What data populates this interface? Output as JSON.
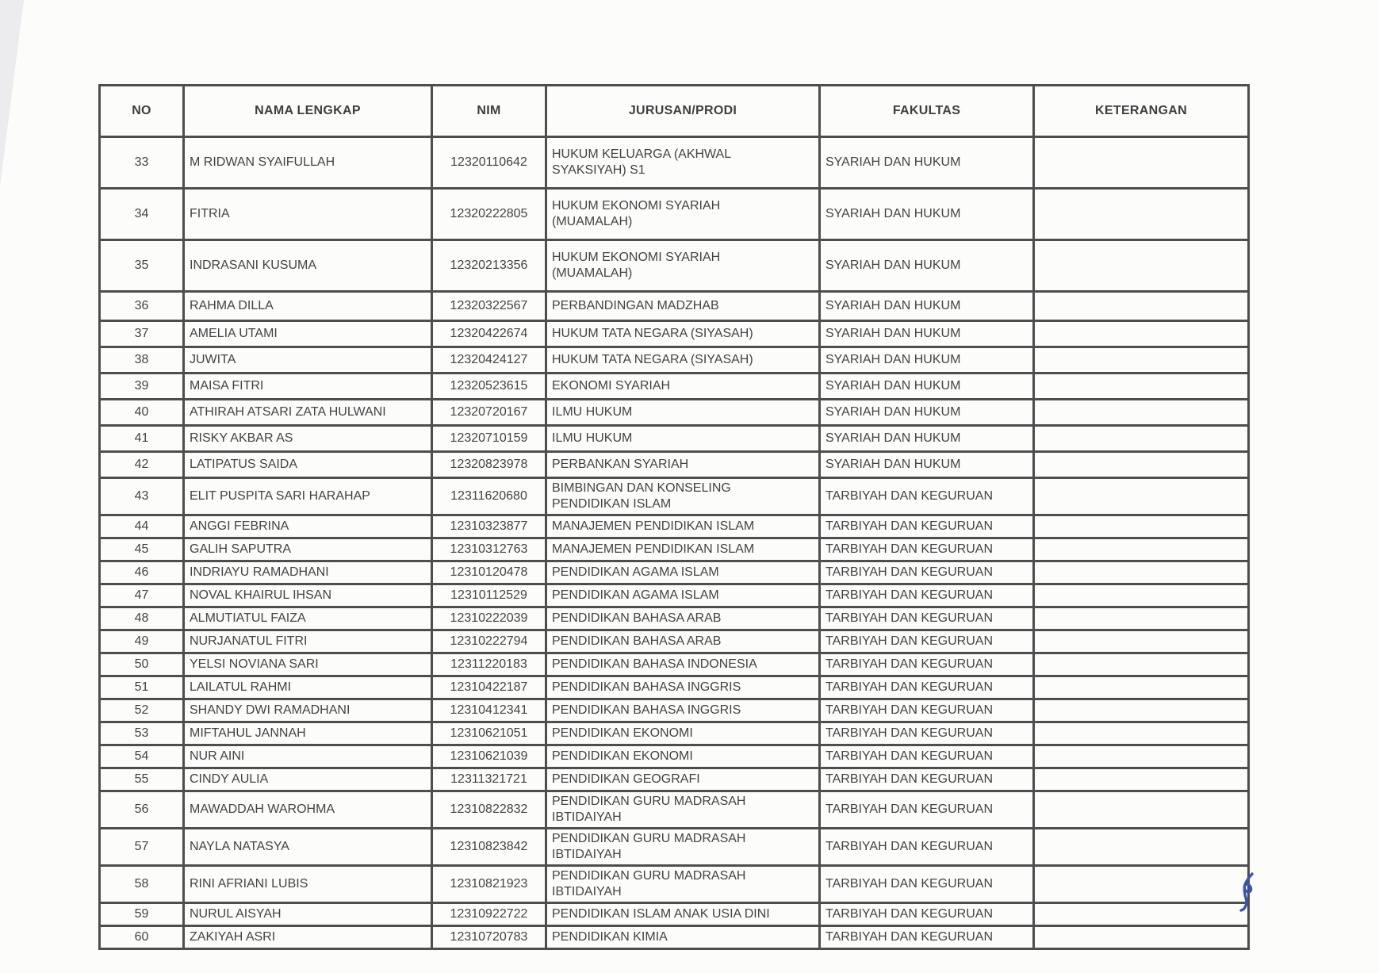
{
  "page": {
    "background": "#fcfcfb",
    "border_color": "#4e4e4e",
    "text_color": "#434343",
    "pen_mark_color": "#3b55ae"
  },
  "table": {
    "headers": {
      "no": "NO",
      "nama": "NAMA LENGKAP",
      "nim": "NIM",
      "jurusan": "JURUSAN/PRODI",
      "fakultas": "FAKULTAS",
      "keterangan": "KETERANGAN"
    },
    "rows": [
      {
        "no": "33",
        "nama": "M RIDWAN SYAIFULLAH",
        "nim": "12320110642",
        "jurusan": "HUKUM KELUARGA (AKHWAL\nSYAKSIYAH) S1",
        "fakultas": "SYARIAH DAN HUKUM",
        "keterangan": ""
      },
      {
        "no": "34",
        "nama": "FITRIA",
        "nim": "12320222805",
        "jurusan": "HUKUM EKONOMI SYARIAH\n(MUAMALAH)",
        "fakultas": "SYARIAH DAN HUKUM",
        "keterangan": ""
      },
      {
        "no": "35",
        "nama": "INDRASANI KUSUMA",
        "nim": "12320213356",
        "jurusan": "HUKUM EKONOMI SYARIAH\n(MUAMALAH)",
        "fakultas": "SYARIAH DAN HUKUM",
        "keterangan": ""
      },
      {
        "no": "36",
        "nama": "RAHMA DILLA",
        "nim": "12320322567",
        "jurusan": "PERBANDINGAN MADZHAB",
        "fakultas": "SYARIAH DAN HUKUM",
        "keterangan": ""
      },
      {
        "no": "37",
        "nama": "AMELIA UTAMI",
        "nim": "12320422674",
        "jurusan": "HUKUM TATA NEGARA (SIYASAH)",
        "fakultas": "SYARIAH DAN HUKUM",
        "keterangan": ""
      },
      {
        "no": "38",
        "nama": "JUWITA",
        "nim": "12320424127",
        "jurusan": "HUKUM TATA NEGARA (SIYASAH)",
        "fakultas": "SYARIAH DAN HUKUM",
        "keterangan": ""
      },
      {
        "no": "39",
        "nama": "MAISA FITRI",
        "nim": "12320523615",
        "jurusan": "EKONOMI SYARIAH",
        "fakultas": "SYARIAH DAN HUKUM",
        "keterangan": ""
      },
      {
        "no": "40",
        "nama": "ATHIRAH ATSARI ZATA HULWANI",
        "nim": "12320720167",
        "jurusan": "ILMU HUKUM",
        "fakultas": "SYARIAH DAN HUKUM",
        "keterangan": ""
      },
      {
        "no": "41",
        "nama": "RISKY AKBAR AS",
        "nim": "12320710159",
        "jurusan": "ILMU HUKUM",
        "fakultas": "SYARIAH DAN HUKUM",
        "keterangan": ""
      },
      {
        "no": "42",
        "nama": "LATIPATUS SAIDA",
        "nim": "12320823978",
        "jurusan": "PERBANKAN SYARIAH",
        "fakultas": "SYARIAH DAN HUKUM",
        "keterangan": ""
      },
      {
        "no": "43",
        "nama": "ELIT PUSPITA SARI HARAHAP",
        "nim": "12311620680",
        "jurusan": "BIMBINGAN DAN KONSELING\nPENDIDIKAN ISLAM",
        "fakultas": "TARBIYAH DAN KEGURUAN",
        "keterangan": ""
      },
      {
        "no": "44",
        "nama": "ANGGI FEBRINA",
        "nim": "12310323877",
        "jurusan": "MANAJEMEN PENDIDIKAN ISLAM",
        "fakultas": "TARBIYAH DAN KEGURUAN",
        "keterangan": ""
      },
      {
        "no": "45",
        "nama": "GALIH SAPUTRA",
        "nim": "12310312763",
        "jurusan": "MANAJEMEN PENDIDIKAN ISLAM",
        "fakultas": "TARBIYAH DAN KEGURUAN",
        "keterangan": ""
      },
      {
        "no": "46",
        "nama": "INDRIAYU RAMADHANI",
        "nim": "12310120478",
        "jurusan": "PENDIDIKAN AGAMA ISLAM",
        "fakultas": "TARBIYAH DAN KEGURUAN",
        "keterangan": ""
      },
      {
        "no": "47",
        "nama": "NOVAL KHAIRUL IHSAN",
        "nim": "12310112529",
        "jurusan": "PENDIDIKAN AGAMA ISLAM",
        "fakultas": "TARBIYAH DAN KEGURUAN",
        "keterangan": ""
      },
      {
        "no": "48",
        "nama": "ALMUTIATUL FAIZA",
        "nim": "12310222039",
        "jurusan": "PENDIDIKAN BAHASA ARAB",
        "fakultas": "TARBIYAH DAN KEGURUAN",
        "keterangan": ""
      },
      {
        "no": "49",
        "nama": "NURJANATUL FITRI",
        "nim": "12310222794",
        "jurusan": "PENDIDIKAN BAHASA ARAB",
        "fakultas": "TARBIYAH DAN KEGURUAN",
        "keterangan": ""
      },
      {
        "no": "50",
        "nama": "YELSI NOVIANA SARI",
        "nim": "12311220183",
        "jurusan": "PENDIDIKAN BAHASA INDONESIA",
        "fakultas": "TARBIYAH DAN KEGURUAN",
        "keterangan": ""
      },
      {
        "no": "51",
        "nama": "LAILATUL RAHMI",
        "nim": "12310422187",
        "jurusan": "PENDIDIKAN BAHASA INGGRIS",
        "fakultas": "TARBIYAH DAN KEGURUAN",
        "keterangan": ""
      },
      {
        "no": "52",
        "nama": "SHANDY DWI RAMADHANI",
        "nim": "12310412341",
        "jurusan": "PENDIDIKAN BAHASA INGGRIS",
        "fakultas": "TARBIYAH DAN KEGURUAN",
        "keterangan": ""
      },
      {
        "no": "53",
        "nama": "MIFTAHUL JANNAH",
        "nim": "12310621051",
        "jurusan": "PENDIDIKAN EKONOMI",
        "fakultas": "TARBIYAH DAN KEGURUAN",
        "keterangan": ""
      },
      {
        "no": "54",
        "nama": "NUR AINI",
        "nim": "12310621039",
        "jurusan": "PENDIDIKAN EKONOMI",
        "fakultas": "TARBIYAH DAN KEGURUAN",
        "keterangan": ""
      },
      {
        "no": "55",
        "nama": "CINDY AULIA",
        "nim": "12311321721",
        "jurusan": "PENDIDIKAN GEOGRAFI",
        "fakultas": "TARBIYAH DAN KEGURUAN",
        "keterangan": ""
      },
      {
        "no": "56",
        "nama": "MAWADDAH WAROHMA",
        "nim": "12310822832",
        "jurusan": "PENDIDIKAN GURU MADRASAH\nIBTIDAIYAH",
        "fakultas": "TARBIYAH DAN KEGURUAN",
        "keterangan": ""
      },
      {
        "no": "57",
        "nama": "NAYLA NATASYA",
        "nim": "12310823842",
        "jurusan": "PENDIDIKAN GURU MADRASAH\nIBTIDAIYAH",
        "fakultas": "TARBIYAH DAN KEGURUAN",
        "keterangan": ""
      },
      {
        "no": "58",
        "nama": "RINI AFRIANI LUBIS",
        "nim": "12310821923",
        "jurusan": "PENDIDIKAN GURU MADRASAH\nIBTIDAIYAH",
        "fakultas": "TARBIYAH DAN KEGURUAN",
        "keterangan": ""
      },
      {
        "no": "59",
        "nama": "NURUL AISYAH",
        "nim": "12310922722",
        "jurusan": "PENDIDIKAN ISLAM ANAK USIA DINI",
        "fakultas": "TARBIYAH DAN KEGURUAN",
        "keterangan": ""
      },
      {
        "no": "60",
        "nama": "ZAKIYAH ASRI",
        "nim": "12310720783",
        "jurusan": "PENDIDIKAN KIMIA",
        "fakultas": "TARBIYAH DAN KEGURUAN",
        "keterangan": ""
      }
    ]
  },
  "annotations": {
    "pen_mark": "blue-ink-squiggle"
  }
}
